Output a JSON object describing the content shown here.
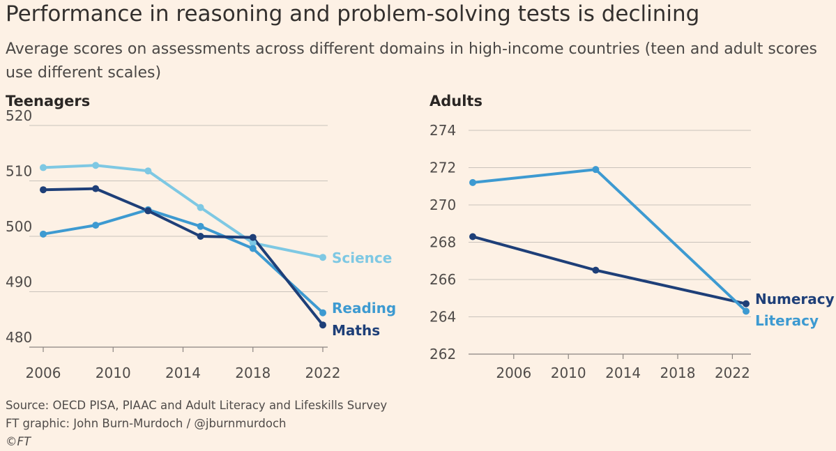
{
  "header": {
    "title": "Performance in reasoning and problem-solving tests is declining",
    "subtitle": "Average scores on assessments across different domains in high-income countries (teen and adult scores use different scales)"
  },
  "colors": {
    "background": "#fdf1e5",
    "science": "#7ec8e3",
    "reading": "#3d9ad1",
    "maths": "#1e3f78",
    "numeracy": "#1e3f78",
    "literacy": "#3d9ad1",
    "grid": "#c9c2bb"
  },
  "chart_data": [
    {
      "type": "line",
      "panel_title": "Teenagers",
      "xlim": [
        2006,
        2022
      ],
      "ylim": [
        480,
        520
      ],
      "x_ticks": [
        2006,
        2010,
        2014,
        2018,
        2022
      ],
      "y_ticks": [
        480,
        490,
        500,
        510,
        520
      ],
      "grid": true,
      "legend": "direct labels at line ends",
      "series": [
        {
          "name": "Science",
          "color": "#7ec8e3",
          "x": [
            2006,
            2009,
            2012,
            2015,
            2018,
            2022
          ],
          "values": [
            512.4,
            512.8,
            511.8,
            505.2,
            498.8,
            496.2
          ]
        },
        {
          "name": "Reading",
          "color": "#3d9ad1",
          "x": [
            2006,
            2009,
            2012,
            2015,
            2018,
            2022
          ],
          "values": [
            500.4,
            502.0,
            504.8,
            501.8,
            497.8,
            486.2
          ]
        },
        {
          "name": "Maths",
          "color": "#1e3f78",
          "x": [
            2006,
            2009,
            2012,
            2015,
            2018,
            2022
          ],
          "values": [
            508.4,
            508.6,
            504.6,
            500.0,
            499.8,
            484.0
          ]
        }
      ]
    },
    {
      "type": "line",
      "panel_title": "Adults",
      "xlim": [
        2003,
        2023
      ],
      "ylim": [
        262,
        274
      ],
      "x_ticks": [
        2006,
        2010,
        2014,
        2018,
        2022
      ],
      "y_ticks": [
        262,
        264,
        266,
        268,
        270,
        272,
        274
      ],
      "grid": true,
      "legend": "direct labels at line ends",
      "series": [
        {
          "name": "Numeracy",
          "color": "#1e3f78",
          "x": [
            2003,
            2012,
            2023
          ],
          "values": [
            268.3,
            266.5,
            264.7
          ]
        },
        {
          "name": "Literacy",
          "color": "#3d9ad1",
          "x": [
            2003,
            2012,
            2023
          ],
          "values": [
            271.2,
            271.9,
            264.3
          ]
        }
      ]
    }
  ],
  "footer": {
    "source": "Source: OECD PISA, PIAAC and Adult Literacy and Lifeskills Survey",
    "credit": "FT graphic: John Burn-Murdoch / @jburnmurdoch",
    "copyright": "©FT"
  }
}
